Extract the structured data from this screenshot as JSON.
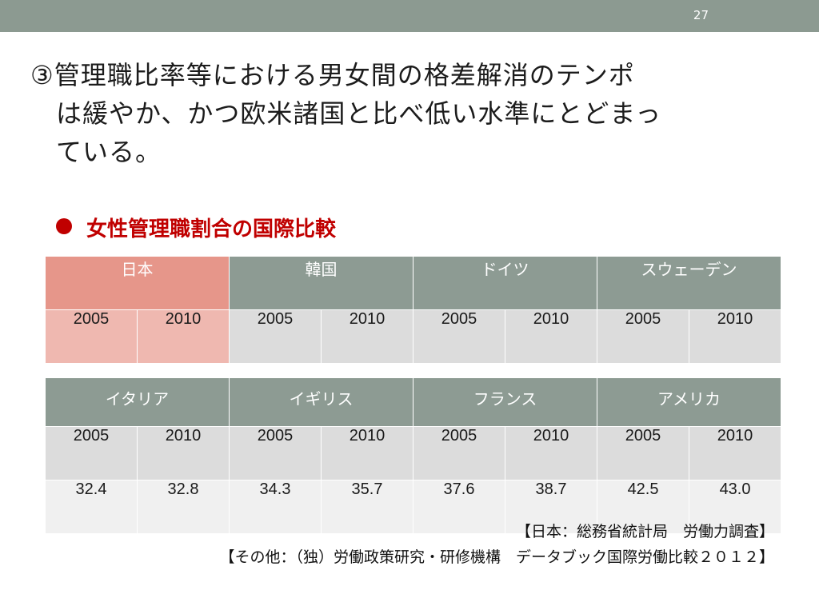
{
  "page_number": "27",
  "heading": {
    "line1": "③管理職比率等における男女間の格差解消のテンポ",
    "line2": "は緩やか、かつ欧米諸国と比べ低い水準にとどまっ",
    "line3": "ている。"
  },
  "bullet_title": "女性管理職割合の国際比較",
  "table1": {
    "countries": [
      "日本",
      "韓国",
      "ドイツ",
      "スウェーデン"
    ],
    "years": [
      "2005",
      "2010",
      "2005",
      "2010",
      "2005",
      "2010",
      "2005",
      "2010"
    ]
  },
  "table2": {
    "countries": [
      "イタリア",
      "イギリス",
      "フランス",
      "アメリカ"
    ],
    "years": [
      "2005",
      "2010",
      "2005",
      "2010",
      "2005",
      "2010",
      "2005",
      "2010"
    ],
    "values": [
      "32.4",
      "32.8",
      "34.3",
      "35.7",
      "37.6",
      "38.7",
      "42.5",
      "43.0"
    ]
  },
  "sources": {
    "japan": "【日本：総務省統計局　労働力調査】",
    "others": "【その他：（独）労働政策研究・研修機構　データブック国際労働比較２０１２】"
  },
  "colors": {
    "topbar": "#8c9a91",
    "header_gray": "#8d9b93",
    "japan_header": "#e6968a",
    "bullet_red": "#c00000"
  }
}
